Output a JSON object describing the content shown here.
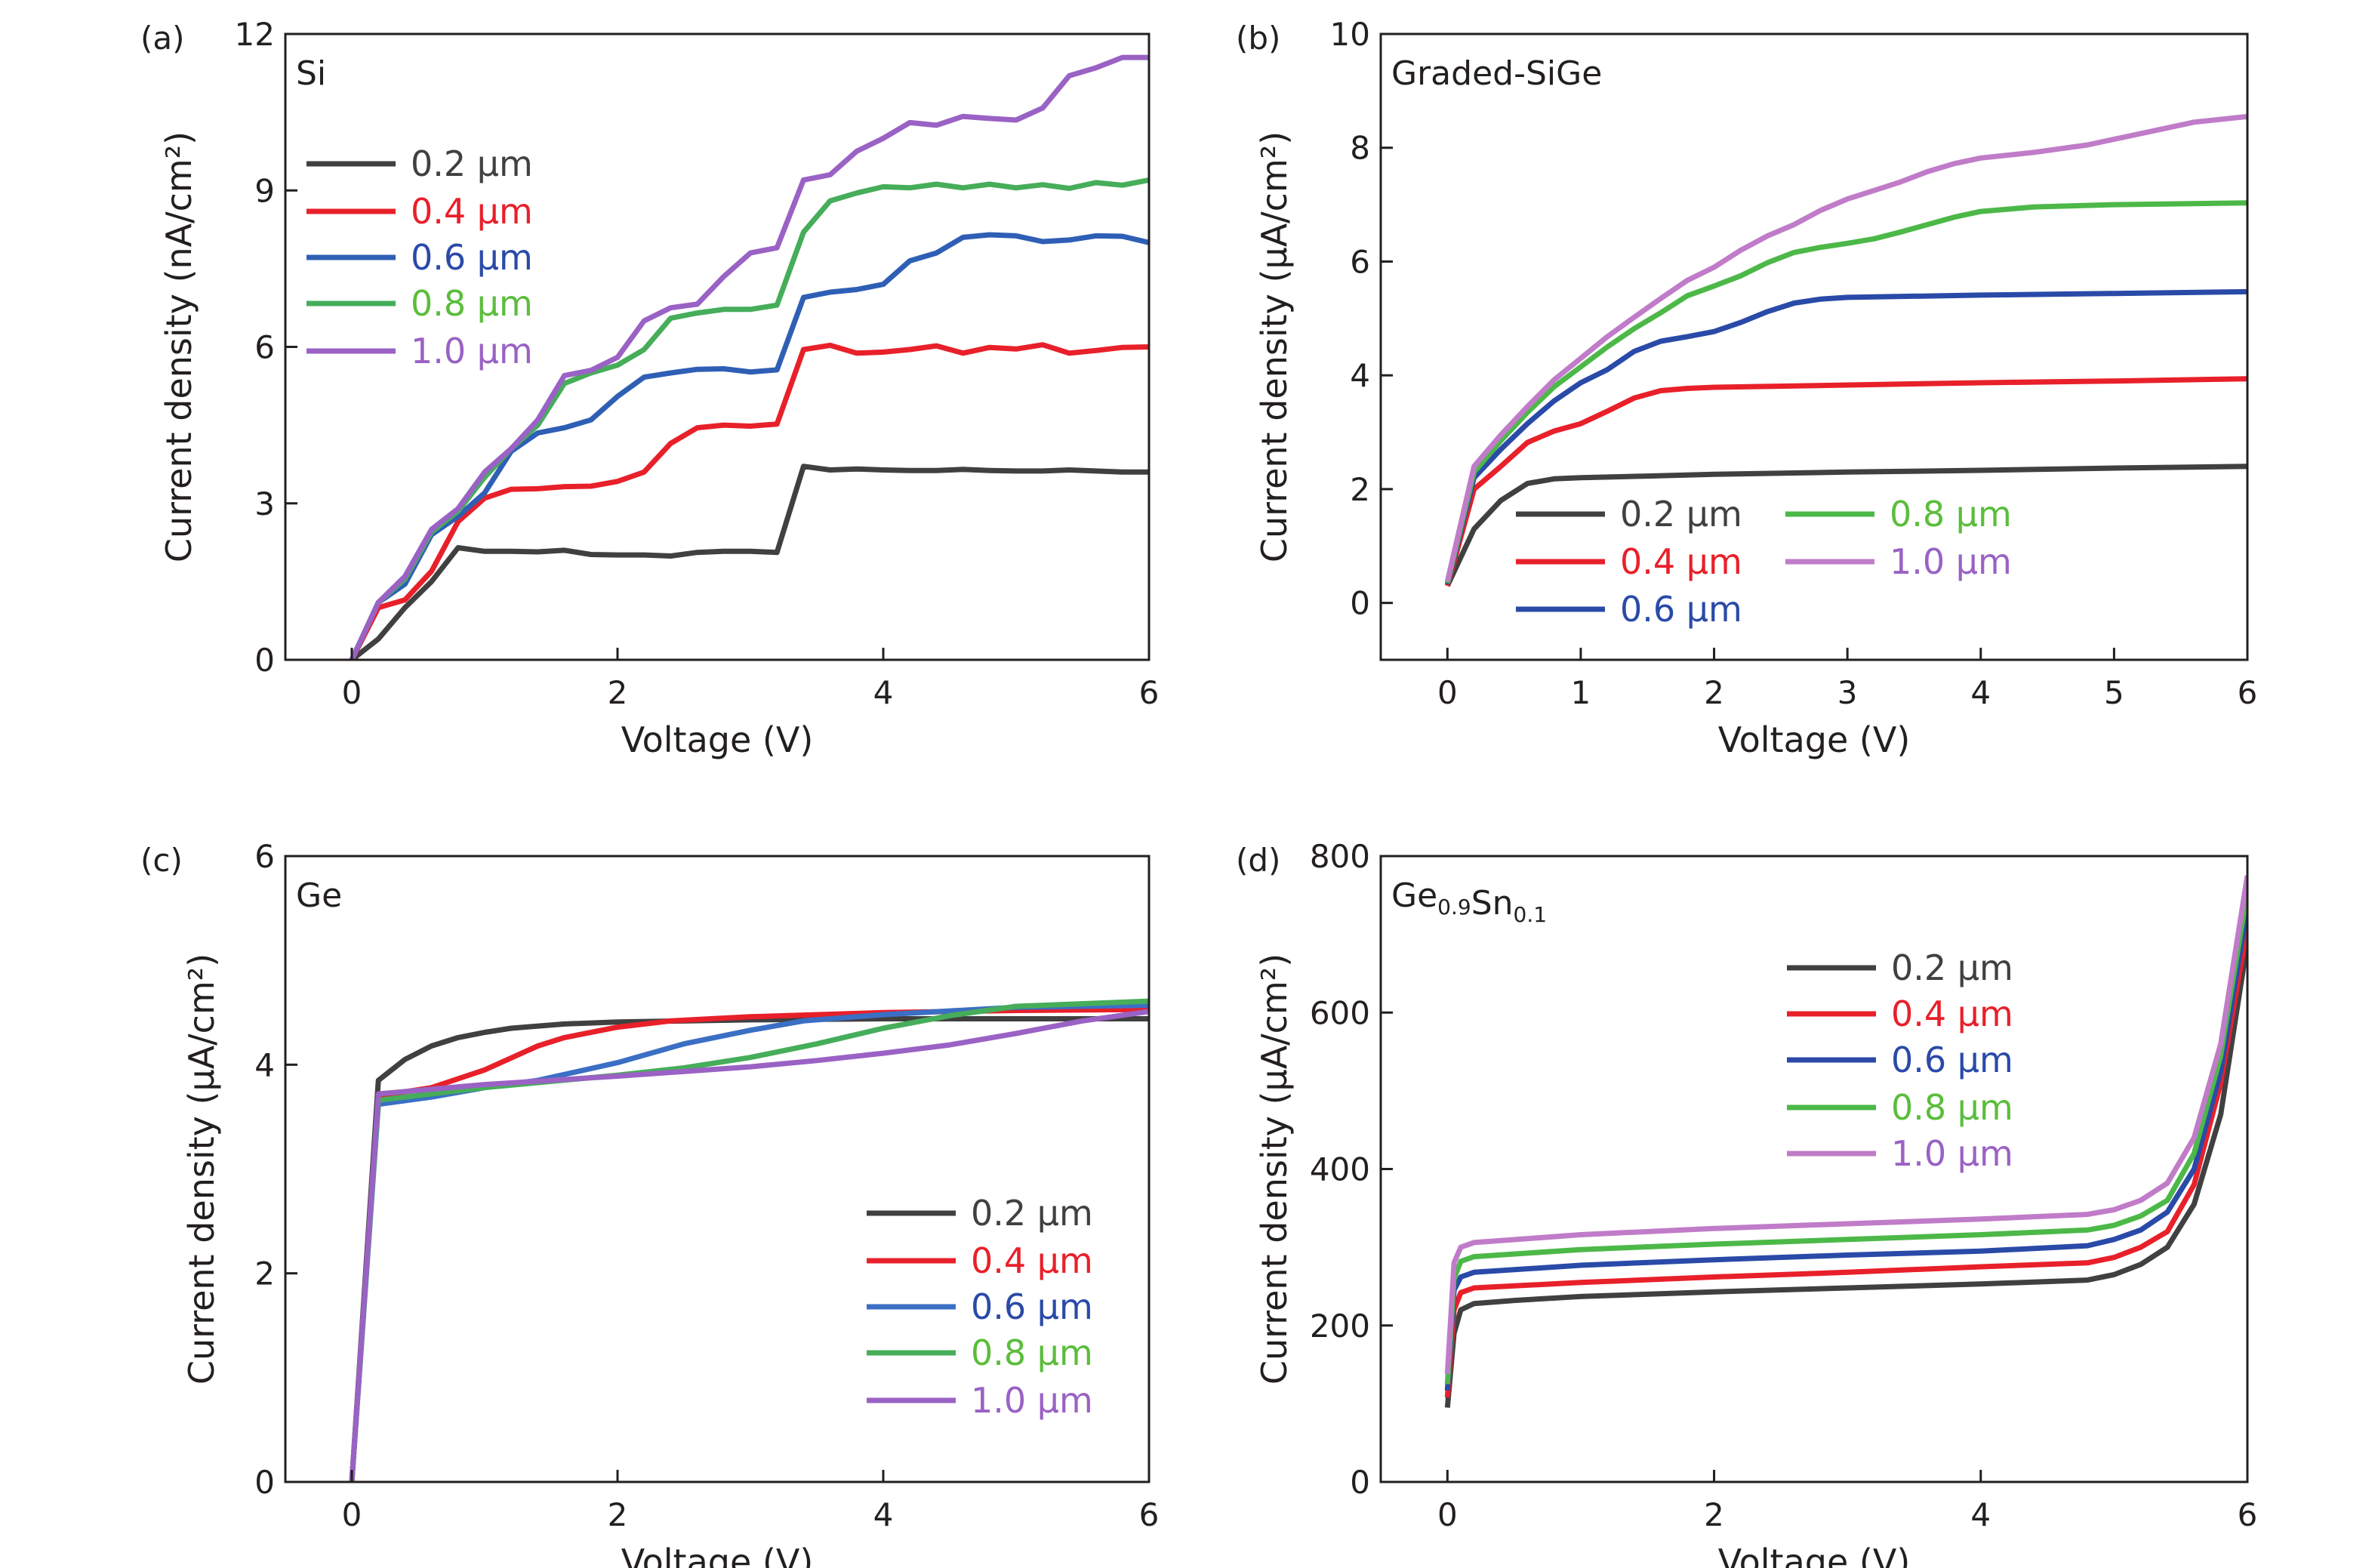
{
  "colors": {
    "0.2": "#404041",
    "0.4": "#e8202a",
    "0.6": "#2f5fb5",
    "0.8": "#46ad5a",
    "1.0": "#9a62c4",
    "1.0_light": "#c07cc8",
    "text_green": "#5bbd3c",
    "axis": "#231f20"
  },
  "chart_data": [
    {
      "panel": "(a)",
      "material": "Si",
      "type": "line",
      "xlabel": "Voltage (V)",
      "ylabel": "Current density (nA/cm²)",
      "xlim": [
        -0.5,
        6
      ],
      "ylim": [
        0,
        12
      ],
      "xticks": [
        0,
        2,
        4,
        6
      ],
      "yticks": [
        0,
        3,
        6,
        9,
        12
      ],
      "grid": false,
      "legend_placement": "upper-left",
      "series": [
        {
          "name": "0.2 µm",
          "color": "#404041",
          "x": [
            0,
            0.2,
            0.4,
            0.6,
            0.8,
            1.0,
            1.2,
            1.4,
            1.6,
            1.8,
            2.0,
            2.2,
            2.4,
            2.6,
            2.8,
            3.0,
            3.2,
            3.4,
            3.6,
            3.8,
            4.0,
            4.2,
            4.4,
            4.6,
            4.8,
            5.0,
            5.2,
            5.4,
            5.6,
            5.8,
            6.0
          ],
          "y": [
            0,
            0.4,
            1.0,
            1.5,
            2.15,
            2.08,
            2.08,
            2.07,
            2.1,
            2.02,
            2.01,
            2.01,
            1.99,
            2.06,
            2.08,
            2.08,
            2.06,
            3.71,
            3.64,
            3.66,
            3.64,
            3.63,
            3.63,
            3.65,
            3.63,
            3.62,
            3.62,
            3.64,
            3.62,
            3.6,
            3.6
          ]
        },
        {
          "name": "0.4 µm",
          "color": "#e8202a",
          "x": [
            0,
            0.2,
            0.4,
            0.6,
            0.8,
            1.0,
            1.2,
            1.4,
            1.6,
            1.8,
            2.0,
            2.2,
            2.4,
            2.6,
            2.8,
            3.0,
            3.2,
            3.4,
            3.6,
            3.8,
            4.0,
            4.2,
            4.4,
            4.6,
            4.8,
            5.0,
            5.2,
            5.4,
            5.6,
            5.8,
            6.0
          ],
          "y": [
            0,
            1.0,
            1.15,
            1.7,
            2.65,
            3.1,
            3.27,
            3.28,
            3.32,
            3.33,
            3.42,
            3.6,
            4.15,
            4.45,
            4.5,
            4.48,
            4.52,
            5.95,
            6.03,
            5.88,
            5.9,
            5.95,
            6.02,
            5.88,
            5.99,
            5.96,
            6.04,
            5.88,
            5.93,
            5.99,
            6.0
          ]
        },
        {
          "name": "0.6 µm",
          "color": "#2f5fb5",
          "x": [
            0,
            0.2,
            0.4,
            0.6,
            0.8,
            1.0,
            1.2,
            1.4,
            1.6,
            1.8,
            2.0,
            2.2,
            2.4,
            2.6,
            2.8,
            3.0,
            3.2,
            3.4,
            3.6,
            3.8,
            4.0,
            4.2,
            4.4,
            4.6,
            4.8,
            5.0,
            5.2,
            5.4,
            5.6,
            5.8,
            6.0
          ],
          "y": [
            0,
            1.1,
            1.45,
            2.4,
            2.75,
            3.2,
            4.0,
            4.35,
            4.45,
            4.6,
            5.05,
            5.42,
            5.5,
            5.57,
            5.58,
            5.52,
            5.56,
            6.95,
            7.05,
            7.1,
            7.2,
            7.65,
            7.8,
            8.1,
            8.15,
            8.13,
            8.02,
            8.05,
            8.13,
            8.12,
            8.0
          ]
        },
        {
          "name": "0.8 µm",
          "color": "#46ad5a",
          "x": [
            0,
            0.2,
            0.4,
            0.6,
            0.8,
            1.0,
            1.2,
            1.4,
            1.6,
            1.8,
            2.0,
            2.2,
            2.4,
            2.6,
            2.8,
            3.0,
            3.2,
            3.4,
            3.6,
            3.8,
            4.0,
            4.2,
            4.4,
            4.6,
            4.8,
            5.0,
            5.2,
            5.4,
            5.6,
            5.8,
            6.0
          ],
          "y": [
            0,
            1.1,
            1.55,
            2.45,
            2.85,
            3.5,
            4.05,
            4.5,
            5.3,
            5.5,
            5.65,
            5.95,
            6.55,
            6.65,
            6.72,
            6.72,
            6.8,
            8.2,
            8.8,
            8.95,
            9.07,
            9.05,
            9.12,
            9.05,
            9.12,
            9.05,
            9.11,
            9.04,
            9.15,
            9.1,
            9.2
          ]
        },
        {
          "name": "1.0 µm",
          "color": "#9a62c4",
          "x": [
            0,
            0.2,
            0.4,
            0.6,
            0.8,
            1.0,
            1.2,
            1.4,
            1.6,
            1.8,
            2.0,
            2.2,
            2.4,
            2.6,
            2.8,
            3.0,
            3.2,
            3.4,
            3.6,
            3.8,
            4.0,
            4.2,
            4.4,
            4.6,
            4.8,
            5.0,
            5.2,
            5.4,
            5.6,
            5.8,
            6.0
          ],
          "y": [
            0,
            1.1,
            1.6,
            2.5,
            2.9,
            3.6,
            4.05,
            4.6,
            5.45,
            5.55,
            5.8,
            6.5,
            6.75,
            6.82,
            7.35,
            7.8,
            7.9,
            9.2,
            9.3,
            9.75,
            10.0,
            10.3,
            10.25,
            10.42,
            10.38,
            10.35,
            10.58,
            11.2,
            11.35,
            11.55,
            11.55
          ]
        }
      ]
    },
    {
      "panel": "(b)",
      "material": "Graded-SiGe",
      "type": "line",
      "xlabel": "Voltage (V)",
      "ylabel": "Current density (µA/cm²)",
      "xlim": [
        -0.5,
        6
      ],
      "ylim": [
        -1,
        10
      ],
      "xticks": [
        0,
        1,
        2,
        3,
        4,
        5,
        6
      ],
      "yticks": [
        0,
        2,
        4,
        6,
        8,
        10
      ],
      "grid": false,
      "legend_placement": "lower-center, two columns",
      "series": [
        {
          "name": "0.2 µm",
          "color": "#404041",
          "x": [
            0,
            0.2,
            0.4,
            0.6,
            0.8,
            1.0,
            1.5,
            2,
            3,
            4,
            5,
            6
          ],
          "y": [
            0.3,
            1.3,
            1.8,
            2.1,
            2.18,
            2.2,
            2.23,
            2.26,
            2.3,
            2.33,
            2.37,
            2.4
          ]
        },
        {
          "name": "0.4 µm",
          "color": "#e8202a",
          "x": [
            0,
            0.2,
            0.4,
            0.6,
            0.8,
            1.0,
            1.2,
            1.4,
            1.6,
            1.8,
            2,
            3,
            4,
            5,
            6
          ],
          "y": [
            0.3,
            2.0,
            2.4,
            2.82,
            3.02,
            3.15,
            3.37,
            3.6,
            3.73,
            3.77,
            3.79,
            3.83,
            3.87,
            3.9,
            3.94
          ]
        },
        {
          "name": "0.6 µm",
          "color": "#2a4aa8",
          "x": [
            0,
            0.2,
            0.4,
            0.6,
            0.8,
            1.0,
            1.2,
            1.4,
            1.6,
            1.8,
            2.0,
            2.2,
            2.4,
            2.6,
            2.8,
            3.0,
            4,
            5,
            6
          ],
          "y": [
            0.33,
            2.2,
            2.7,
            3.15,
            3.55,
            3.87,
            4.1,
            4.42,
            4.6,
            4.68,
            4.77,
            4.93,
            5.12,
            5.27,
            5.34,
            5.37,
            5.41,
            5.44,
            5.47
          ]
        },
        {
          "name": "0.8 µm",
          "color": "#4cb848",
          "x": [
            0,
            0.2,
            0.4,
            0.6,
            0.8,
            1.0,
            1.2,
            1.4,
            1.6,
            1.8,
            2.0,
            2.2,
            2.4,
            2.6,
            2.8,
            3.0,
            3.2,
            3.4,
            3.6,
            3.8,
            4.0,
            4.4,
            5,
            6
          ],
          "y": [
            0.35,
            2.3,
            2.85,
            3.35,
            3.8,
            4.15,
            4.5,
            4.82,
            5.1,
            5.4,
            5.57,
            5.75,
            5.98,
            6.16,
            6.25,
            6.32,
            6.4,
            6.52,
            6.65,
            6.78,
            6.88,
            6.96,
            7.0,
            7.03
          ]
        },
        {
          "name": "1.0 µm",
          "color": "#c07cc8",
          "x": [
            0,
            0.2,
            0.4,
            0.6,
            0.8,
            1.0,
            1.2,
            1.4,
            1.6,
            1.8,
            2.0,
            2.2,
            2.4,
            2.6,
            2.8,
            3.0,
            3.2,
            3.4,
            3.6,
            3.8,
            4.0,
            4.4,
            4.8,
            5.2,
            5.6,
            6.0
          ],
          "y": [
            0.38,
            2.4,
            2.95,
            3.45,
            3.92,
            4.3,
            4.68,
            5.02,
            5.35,
            5.67,
            5.9,
            6.2,
            6.45,
            6.65,
            6.9,
            7.1,
            7.25,
            7.4,
            7.58,
            7.72,
            7.82,
            7.92,
            8.05,
            8.25,
            8.45,
            8.55
          ]
        }
      ]
    },
    {
      "panel": "(c)",
      "material": "Ge",
      "type": "line",
      "xlabel": "Voltage (V)",
      "ylabel": "Current density (µA/cm²)",
      "xlim": [
        -0.5,
        6
      ],
      "ylim": [
        0,
        6
      ],
      "xticks": [
        0,
        2,
        4,
        6
      ],
      "yticks": [
        0,
        2,
        4,
        6
      ],
      "grid": false,
      "legend_placement": "lower-right",
      "series": [
        {
          "name": "0.2 µm",
          "color": "#404041",
          "x": [
            0,
            0.2,
            0.4,
            0.6,
            0.8,
            1.0,
            1.2,
            1.6,
            2,
            3,
            4,
            5,
            6
          ],
          "y": [
            0,
            3.85,
            4.05,
            4.18,
            4.26,
            4.31,
            4.35,
            4.39,
            4.41,
            4.43,
            4.44,
            4.44,
            4.44
          ]
        },
        {
          "name": "0.4 µm",
          "color": "#e8202a",
          "x": [
            0,
            0.2,
            0.6,
            1.0,
            1.4,
            1.6,
            2.0,
            2.4,
            3,
            4,
            5,
            6
          ],
          "y": [
            0,
            3.7,
            3.78,
            3.95,
            4.18,
            4.26,
            4.36,
            4.42,
            4.46,
            4.5,
            4.52,
            4.53
          ]
        },
        {
          "name": "0.6 µm",
          "color": "#3b6fc4",
          "x": [
            0,
            0.2,
            0.6,
            1.0,
            1.4,
            2,
            2.5,
            3,
            3.4,
            4,
            5,
            6
          ],
          "y": [
            0,
            3.62,
            3.69,
            3.78,
            3.85,
            4.02,
            4.2,
            4.33,
            4.42,
            4.48,
            4.55,
            4.57
          ]
        },
        {
          "name": "0.8 µm",
          "color": "#46ad5a",
          "x": [
            0,
            0.2,
            1,
            2,
            2.5,
            3,
            3.5,
            4,
            4.5,
            5,
            6
          ],
          "y": [
            0,
            3.66,
            3.78,
            3.9,
            3.97,
            4.07,
            4.2,
            4.35,
            4.47,
            4.56,
            4.61
          ]
        },
        {
          "name": "1.0 µm",
          "color": "#9a62c4",
          "x": [
            0,
            0.2,
            1,
            2,
            3,
            3.5,
            4,
            4.5,
            5,
            5.5,
            6
          ],
          "y": [
            0,
            3.72,
            3.81,
            3.89,
            3.98,
            4.04,
            4.11,
            4.19,
            4.3,
            4.42,
            4.51
          ]
        }
      ]
    },
    {
      "panel": "(d)",
      "material": "Ge0.9Sn0.1",
      "material_parts": [
        {
          "t": "Ge",
          "sub": "0.9"
        },
        {
          "t": "Sn",
          "sub": "0.1"
        }
      ],
      "type": "line",
      "xlabel": "Voltage (V)",
      "ylabel": "Current density (µA/cm²)",
      "xlim": [
        -0.5,
        6
      ],
      "ylim": [
        0,
        800
      ],
      "xticks": [
        0,
        2,
        4,
        6
      ],
      "yticks": [
        0,
        200,
        400,
        600,
        800
      ],
      "grid": false,
      "legend_placement": "upper-center",
      "series": [
        {
          "name": "0.2 µm",
          "color": "#404041",
          "x": [
            0,
            0.05,
            0.1,
            0.2,
            0.5,
            1,
            2,
            3,
            4,
            4.8,
            5.0,
            5.2,
            5.4,
            5.6,
            5.8,
            6.0
          ],
          "y": [
            95,
            190,
            220,
            228,
            232,
            237,
            243,
            248,
            253,
            258,
            265,
            278,
            300,
            355,
            470,
            690
          ]
        },
        {
          "name": "0.4 µm",
          "color": "#e8202a",
          "x": [
            0,
            0.05,
            0.1,
            0.2,
            1,
            2,
            3,
            4,
            4.8,
            5.0,
            5.2,
            5.4,
            5.6,
            5.8,
            6.0
          ],
          "y": [
            108,
            220,
            242,
            248,
            255,
            262,
            268,
            275,
            280,
            287,
            300,
            320,
            380,
            510,
            710
          ]
        },
        {
          "name": "0.6 µm",
          "color": "#2a4aa8",
          "x": [
            0,
            0.05,
            0.1,
            0.2,
            1,
            2,
            3,
            4,
            4.8,
            5.0,
            5.2,
            5.4,
            5.6,
            5.8,
            6.0
          ],
          "y": [
            117,
            245,
            262,
            268,
            277,
            284,
            290,
            295,
            302,
            310,
            322,
            345,
            400,
            525,
            735
          ]
        },
        {
          "name": "0.8 µm",
          "color": "#4cb848",
          "x": [
            0,
            0.05,
            0.1,
            0.2,
            1,
            2,
            3,
            4,
            4.8,
            5.0,
            5.2,
            5.4,
            5.6,
            5.8,
            6.0
          ],
          "y": [
            125,
            260,
            282,
            288,
            297,
            304,
            310,
            316,
            322,
            328,
            340,
            360,
            420,
            545,
            755
          ]
        },
        {
          "name": "1.0 µm",
          "color": "#c07cc8",
          "x": [
            0,
            0.05,
            0.1,
            0.2,
            1,
            2,
            3,
            4,
            4.8,
            5.0,
            5.2,
            5.4,
            5.6,
            5.8,
            6.0
          ],
          "y": [
            138,
            280,
            300,
            306,
            316,
            324,
            330,
            336,
            342,
            348,
            360,
            382,
            440,
            560,
            775
          ]
        }
      ]
    }
  ]
}
